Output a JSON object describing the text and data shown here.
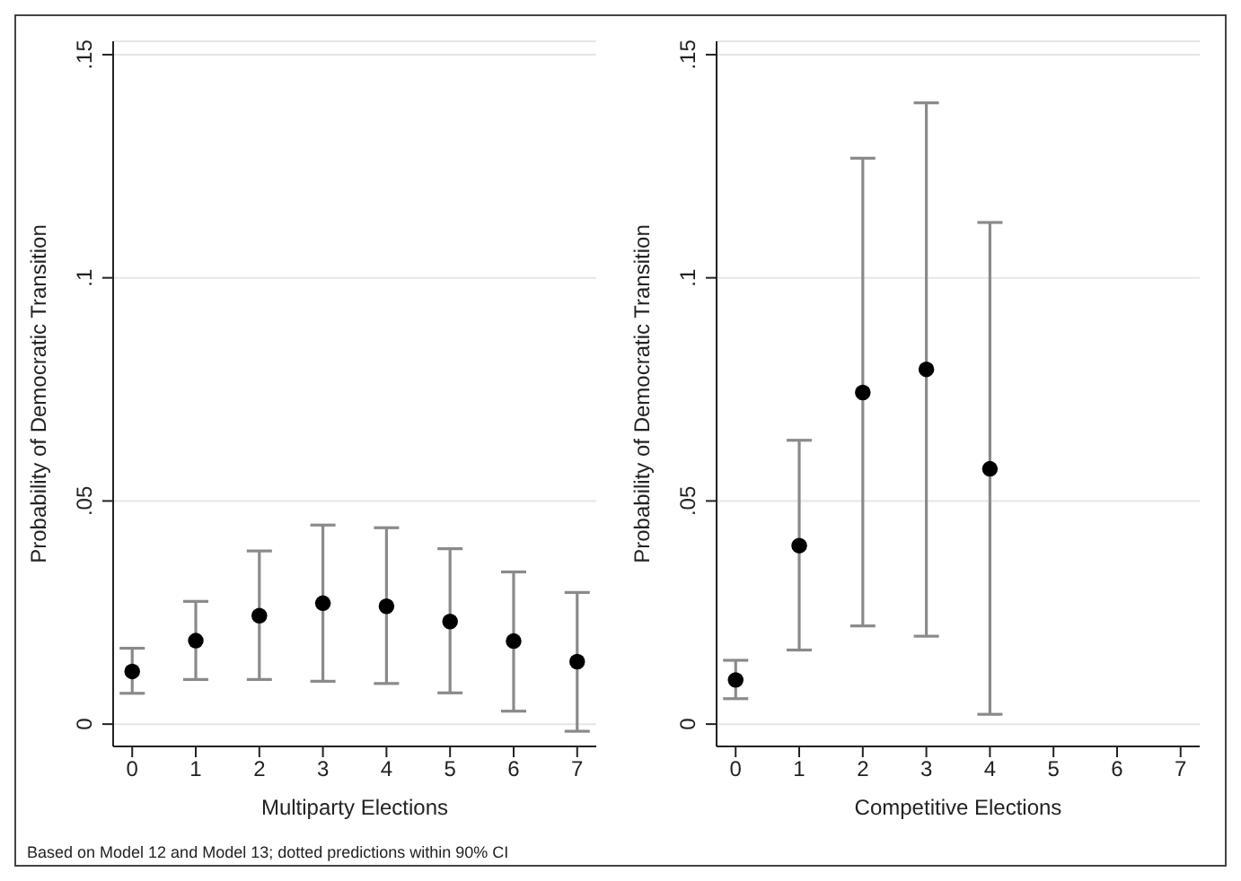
{
  "chart_data": [
    {
      "type": "scatter",
      "xlabel": "Multiparty Elections",
      "ylabel": "Probability of Democratic Transition",
      "x": [
        0,
        1,
        2,
        3,
        4,
        5,
        6,
        7
      ],
      "series": [
        {
          "color": "#000000",
          "values": [
            0.0118,
            0.0187,
            0.0243,
            0.0271,
            0.0264,
            0.023,
            0.0186,
            0.014
          ],
          "errors": [
            [
              0.0069,
              0.017
            ],
            [
              0.01,
              0.0275
            ],
            [
              0.01,
              0.0388
            ],
            [
              0.0096,
              0.0446
            ],
            [
              0.0091,
              0.044
            ],
            [
              0.007,
              0.0393
            ],
            [
              0.0029,
              0.0341
            ],
            [
              -0.0016,
              0.0295
            ]
          ]
        }
      ],
      "xlim": [
        -0.3,
        7.3
      ],
      "xticks": [
        0,
        1,
        2,
        3,
        4,
        5,
        6,
        7
      ],
      "ylim": [
        -0.005,
        0.153
      ],
      "yticks": [
        {
          "value": 0,
          "label": "0"
        },
        {
          "value": 0.05,
          "label": ".05"
        },
        {
          "value": 0.1,
          "label": ".1"
        },
        {
          "value": 0.15,
          "label": ".15"
        }
      ],
      "grid": "y",
      "marker": "circle",
      "annotations": [
        "Based on Model 12 and Model 13; dotted predictions within 90% CI"
      ]
    },
    {
      "type": "scatter",
      "xlabel": "Competitive Elections",
      "ylabel": "Probability of Democratic Transition",
      "x": [
        0,
        1,
        2,
        3,
        4
      ],
      "series": [
        {
          "color": "#000000",
          "values": [
            0.0099,
            0.04,
            0.0743,
            0.0795,
            0.0572
          ],
          "errors": [
            [
              0.0057,
              0.0143
            ],
            [
              0.0166,
              0.0636
            ],
            [
              0.022,
              0.1268
            ],
            [
              0.0197,
              0.1392
            ],
            [
              0.0022,
              0.1124
            ]
          ]
        }
      ],
      "xlim": [
        -0.3,
        7.3
      ],
      "xticks": [
        0,
        1,
        2,
        3,
        4,
        5,
        6,
        7
      ],
      "ylim": [
        -0.005,
        0.153
      ],
      "yticks": [
        {
          "value": 0,
          "label": "0"
        },
        {
          "value": 0.05,
          "label": ".05"
        },
        {
          "value": 0.1,
          "label": ".1"
        },
        {
          "value": 0.15,
          "label": ".15"
        }
      ],
      "grid": "y",
      "marker": "circle"
    }
  ]
}
